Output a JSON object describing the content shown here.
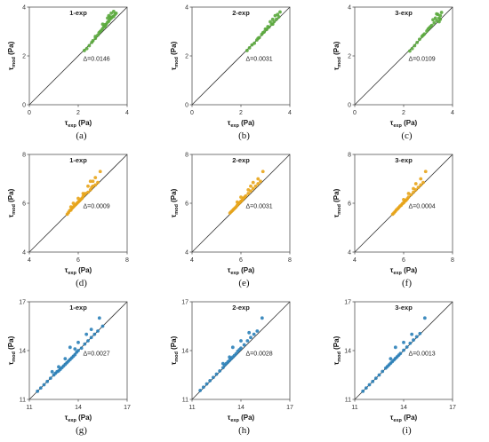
{
  "chart_data": [
    {
      "panel": "(a)",
      "title": "1-exp",
      "type": "scatter",
      "xlabel": "τexp (Pa)",
      "ylabel": "τmod (Pa)",
      "xlim": [
        0,
        4
      ],
      "ylim": [
        0,
        4
      ],
      "xticks": [
        "0",
        "2",
        "4"
      ],
      "yticks": [
        "0",
        "2",
        "4"
      ],
      "annotation": "Δ=0.0146",
      "color": "#5aa83c",
      "identity_line": true,
      "points": [
        [
          2.25,
          2.22
        ],
        [
          2.35,
          2.3
        ],
        [
          2.45,
          2.42
        ],
        [
          2.55,
          2.55
        ],
        [
          2.6,
          2.62
        ],
        [
          2.7,
          2.72
        ],
        [
          2.8,
          2.85
        ],
        [
          2.85,
          2.95
        ],
        [
          2.9,
          3.0
        ],
        [
          3.0,
          3.12
        ],
        [
          3.05,
          3.2
        ],
        [
          3.1,
          3.28
        ],
        [
          3.15,
          3.3
        ],
        [
          3.2,
          3.38
        ],
        [
          3.25,
          3.42
        ],
        [
          3.3,
          3.5
        ],
        [
          3.35,
          3.55
        ],
        [
          3.4,
          3.6
        ],
        [
          3.45,
          3.62
        ],
        [
          3.5,
          3.7
        ],
        [
          3.55,
          3.75
        ],
        [
          3.3,
          3.6
        ],
        [
          3.2,
          3.55
        ],
        [
          3.35,
          3.75
        ],
        [
          3.45,
          3.82
        ],
        [
          2.7,
          2.8
        ],
        [
          2.95,
          3.05
        ],
        [
          3.1,
          3.2
        ],
        [
          3.0,
          3.3
        ],
        [
          3.25,
          3.65
        ]
      ]
    },
    {
      "panel": "(b)",
      "title": "2-exp",
      "type": "scatter",
      "xlabel": "τexp (Pa)",
      "ylabel": "τmod (Pa)",
      "xlim": [
        0,
        4
      ],
      "ylim": [
        0,
        4
      ],
      "xticks": [
        "0",
        "2",
        "4"
      ],
      "yticks": [
        "0",
        "2",
        "4"
      ],
      "annotation": "Δ=0.0031",
      "color": "#5aa83c",
      "identity_line": true,
      "points": [
        [
          2.25,
          2.22
        ],
        [
          2.35,
          2.33
        ],
        [
          2.45,
          2.45
        ],
        [
          2.55,
          2.52
        ],
        [
          2.65,
          2.65
        ],
        [
          2.75,
          2.75
        ],
        [
          2.85,
          2.88
        ],
        [
          2.95,
          2.98
        ],
        [
          3.05,
          3.08
        ],
        [
          3.15,
          3.18
        ],
        [
          3.25,
          3.3
        ],
        [
          3.35,
          3.4
        ],
        [
          3.45,
          3.5
        ],
        [
          3.55,
          3.6
        ],
        [
          3.5,
          3.7
        ],
        [
          3.3,
          3.5
        ],
        [
          3.2,
          3.4
        ],
        [
          3.4,
          3.65
        ],
        [
          3.6,
          3.8
        ],
        [
          2.9,
          2.95
        ],
        [
          3.1,
          3.2
        ],
        [
          3.0,
          3.1
        ],
        [
          2.7,
          2.72
        ],
        [
          3.3,
          3.3
        ]
      ]
    },
    {
      "panel": "(c)",
      "title": "3-exp",
      "type": "scatter",
      "xlabel": "τexp (Pa)",
      "ylabel": "τmod (Pa)",
      "xlim": [
        0,
        4
      ],
      "ylim": [
        0,
        4
      ],
      "xticks": [
        "0",
        "2",
        "4"
      ],
      "yticks": [
        "0",
        "2",
        "4"
      ],
      "annotation": "Δ=0.0109",
      "color": "#5aa83c",
      "identity_line": true,
      "points": [
        [
          2.25,
          2.2
        ],
        [
          2.35,
          2.3
        ],
        [
          2.45,
          2.42
        ],
        [
          2.55,
          2.55
        ],
        [
          2.65,
          2.68
        ],
        [
          2.75,
          2.8
        ],
        [
          2.85,
          2.9
        ],
        [
          2.95,
          3.02
        ],
        [
          3.05,
          3.15
        ],
        [
          3.15,
          3.25
        ],
        [
          3.25,
          3.35
        ],
        [
          3.35,
          3.45
        ],
        [
          3.45,
          3.55
        ],
        [
          3.5,
          3.65
        ],
        [
          3.3,
          3.55
        ],
        [
          3.2,
          3.48
        ],
        [
          3.4,
          3.7
        ],
        [
          3.55,
          3.78
        ],
        [
          3.35,
          3.72
        ],
        [
          2.8,
          2.85
        ],
        [
          3.0,
          3.1
        ],
        [
          3.1,
          3.2
        ],
        [
          3.5,
          3.5
        ],
        [
          3.45,
          3.4
        ]
      ]
    },
    {
      "panel": "(d)",
      "title": "1-exp",
      "type": "scatter",
      "xlabel": "τexp (Pa)",
      "ylabel": "τmod (Pa)",
      "xlim": [
        4,
        8
      ],
      "ylim": [
        4,
        8
      ],
      "xticks": [
        "4",
        "6",
        "8"
      ],
      "yticks": [
        "4",
        "6",
        "8"
      ],
      "annotation": "Δ=0.0009",
      "color": "#e8a418",
      "identity_line": true,
      "points": [
        [
          5.55,
          5.55
        ],
        [
          5.6,
          5.62
        ],
        [
          5.65,
          5.7
        ],
        [
          5.7,
          5.72
        ],
        [
          5.75,
          5.8
        ],
        [
          5.8,
          5.85
        ],
        [
          5.85,
          5.9
        ],
        [
          5.9,
          5.95
        ],
        [
          5.95,
          6.0
        ],
        [
          6.0,
          6.05
        ],
        [
          6.05,
          6.1
        ],
        [
          6.1,
          6.15
        ],
        [
          6.15,
          6.2
        ],
        [
          6.2,
          6.28
        ],
        [
          6.25,
          6.35
        ],
        [
          6.3,
          6.4
        ],
        [
          6.4,
          6.45
        ],
        [
          6.5,
          6.55
        ],
        [
          6.55,
          6.65
        ],
        [
          6.6,
          6.7
        ],
        [
          6.7,
          6.75
        ],
        [
          6.8,
          6.85
        ],
        [
          6.9,
          7.3
        ],
        [
          6.7,
          7.05
        ],
        [
          6.5,
          6.9
        ],
        [
          6.4,
          6.7
        ],
        [
          6.6,
          6.9
        ],
        [
          6.2,
          6.4
        ],
        [
          6.0,
          6.2
        ],
        [
          5.8,
          6.0
        ],
        [
          5.7,
          5.85
        ]
      ]
    },
    {
      "panel": "(e)",
      "title": "2-exp",
      "type": "scatter",
      "xlabel": "τexp (Pa)",
      "ylabel": "τmod (Pa)",
      "xlim": [
        4,
        8
      ],
      "ylim": [
        4,
        8
      ],
      "xticks": [
        "4",
        "6",
        "8"
      ],
      "yticks": [
        "4",
        "6",
        "8"
      ],
      "annotation": "Δ=0.0031",
      "color": "#e8a418",
      "identity_line": true,
      "points": [
        [
          5.55,
          5.6
        ],
        [
          5.6,
          5.65
        ],
        [
          5.65,
          5.7
        ],
        [
          5.7,
          5.75
        ],
        [
          5.75,
          5.8
        ],
        [
          5.8,
          5.85
        ],
        [
          5.85,
          5.92
        ],
        [
          5.9,
          5.98
        ],
        [
          5.95,
          6.02
        ],
        [
          6.0,
          6.08
        ],
        [
          6.05,
          6.12
        ],
        [
          6.1,
          6.2
        ],
        [
          6.15,
          6.25
        ],
        [
          6.2,
          6.3
        ],
        [
          6.3,
          6.4
        ],
        [
          6.4,
          6.5
        ],
        [
          6.5,
          6.6
        ],
        [
          6.6,
          6.7
        ],
        [
          6.7,
          6.8
        ],
        [
          6.8,
          6.9
        ],
        [
          6.9,
          7.3
        ],
        [
          6.7,
          7.0
        ],
        [
          6.5,
          6.85
        ],
        [
          6.4,
          6.7
        ],
        [
          6.3,
          6.55
        ],
        [
          6.0,
          6.25
        ],
        [
          5.85,
          6.05
        ]
      ]
    },
    {
      "panel": "(f)",
      "title": "3-exp",
      "type": "scatter",
      "xlabel": "τexp (Pa)",
      "ylabel": "τmod (Pa)",
      "xlim": [
        4,
        8
      ],
      "ylim": [
        4,
        8
      ],
      "xticks": [
        "4",
        "6",
        "8"
      ],
      "yticks": [
        "4",
        "6",
        "8"
      ],
      "annotation": "Δ=0.0004",
      "color": "#e8a418",
      "identity_line": true,
      "points": [
        [
          5.55,
          5.55
        ],
        [
          5.6,
          5.6
        ],
        [
          5.65,
          5.66
        ],
        [
          5.7,
          5.72
        ],
        [
          5.75,
          5.77
        ],
        [
          5.8,
          5.82
        ],
        [
          5.85,
          5.88
        ],
        [
          5.9,
          5.92
        ],
        [
          5.95,
          5.98
        ],
        [
          6.0,
          6.02
        ],
        [
          6.05,
          6.08
        ],
        [
          6.1,
          6.12
        ],
        [
          6.15,
          6.18
        ],
        [
          6.2,
          6.25
        ],
        [
          6.3,
          6.35
        ],
        [
          6.4,
          6.45
        ],
        [
          6.5,
          6.55
        ],
        [
          6.6,
          6.65
        ],
        [
          6.7,
          6.75
        ],
        [
          6.8,
          6.85
        ],
        [
          6.9,
          7.3
        ],
        [
          6.7,
          7.0
        ],
        [
          6.5,
          6.8
        ],
        [
          6.4,
          6.6
        ],
        [
          6.2,
          6.4
        ],
        [
          6.0,
          6.15
        ]
      ]
    },
    {
      "panel": "(g)",
      "title": "1-exp",
      "type": "scatter",
      "xlabel": "τexp (Pa)",
      "ylabel": "τmod (Pa)",
      "xlim": [
        11,
        17
      ],
      "ylim": [
        11,
        17
      ],
      "xticks": [
        "11",
        "14",
        "17"
      ],
      "yticks": [
        "11",
        "14",
        "17"
      ],
      "annotation": "Δ=0.0027",
      "color": "#2a7fb8",
      "identity_line": true,
      "points": [
        [
          11.5,
          11.5
        ],
        [
          11.7,
          11.7
        ],
        [
          11.9,
          11.9
        ],
        [
          12.1,
          12.1
        ],
        [
          12.3,
          12.3
        ],
        [
          12.5,
          12.5
        ],
        [
          12.6,
          12.6
        ],
        [
          12.7,
          12.7
        ],
        [
          12.8,
          12.75
        ],
        [
          12.9,
          12.85
        ],
        [
          13.0,
          12.95
        ],
        [
          13.1,
          13.05
        ],
        [
          13.2,
          13.15
        ],
        [
          13.3,
          13.25
        ],
        [
          13.4,
          13.35
        ],
        [
          13.5,
          13.45
        ],
        [
          13.6,
          13.55
        ],
        [
          13.7,
          13.65
        ],
        [
          13.8,
          13.75
        ],
        [
          13.9,
          13.9
        ],
        [
          14.0,
          14.0
        ],
        [
          14.2,
          14.15
        ],
        [
          14.4,
          14.4
        ],
        [
          14.6,
          14.6
        ],
        [
          14.8,
          14.8
        ],
        [
          15.0,
          15.0
        ],
        [
          15.2,
          15.2
        ],
        [
          15.5,
          15.5
        ],
        [
          13.5,
          14.2
        ],
        [
          14.0,
          14.5
        ],
        [
          14.5,
          15.0
        ],
        [
          15.3,
          16.0
        ],
        [
          14.8,
          15.3
        ],
        [
          12.8,
          13.0
        ],
        [
          13.2,
          13.5
        ],
        [
          12.4,
          12.7
        ],
        [
          13.8,
          14.1
        ]
      ]
    },
    {
      "panel": "(h)",
      "title": "2-exp",
      "type": "scatter",
      "xlabel": "τexp (Pa)",
      "ylabel": "τmod (Pa)",
      "xlim": [
        11,
        17
      ],
      "ylim": [
        11,
        17
      ],
      "xticks": [
        "11",
        "14",
        "17"
      ],
      "yticks": [
        "11",
        "14",
        "17"
      ],
      "annotation": "Δ=0.0028",
      "color": "#2a7fb8",
      "identity_line": true,
      "points": [
        [
          11.5,
          11.55
        ],
        [
          11.7,
          11.75
        ],
        [
          11.9,
          11.95
        ],
        [
          12.1,
          12.15
        ],
        [
          12.3,
          12.35
        ],
        [
          12.5,
          12.55
        ],
        [
          12.7,
          12.75
        ],
        [
          12.9,
          12.95
        ],
        [
          13.0,
          13.1
        ],
        [
          13.1,
          13.2
        ],
        [
          13.2,
          13.3
        ],
        [
          13.3,
          13.4
        ],
        [
          13.4,
          13.5
        ],
        [
          13.5,
          13.6
        ],
        [
          13.6,
          13.7
        ],
        [
          13.7,
          13.8
        ],
        [
          13.8,
          13.95
        ],
        [
          13.9,
          14.05
        ],
        [
          14.0,
          14.15
        ],
        [
          14.2,
          14.35
        ],
        [
          14.4,
          14.6
        ],
        [
          14.6,
          14.8
        ],
        [
          14.8,
          15.0
        ],
        [
          15.0,
          15.2
        ],
        [
          15.3,
          16.0
        ],
        [
          13.5,
          14.2
        ],
        [
          14.0,
          14.6
        ],
        [
          14.5,
          15.1
        ],
        [
          12.9,
          13.2
        ],
        [
          13.3,
          13.6
        ]
      ]
    },
    {
      "panel": "(i)",
      "title": "3-exp",
      "type": "scatter",
      "xlabel": "τexp (Pa)",
      "ylabel": "τmod (Pa)",
      "xlim": [
        11,
        17
      ],
      "ylim": [
        11,
        17
      ],
      "xticks": [
        "11",
        "14",
        "17"
      ],
      "yticks": [
        "11",
        "14",
        "17"
      ],
      "annotation": "Δ=0.0013",
      "color": "#2a7fb8",
      "identity_line": true,
      "points": [
        [
          11.5,
          11.5
        ],
        [
          11.7,
          11.7
        ],
        [
          11.9,
          11.9
        ],
        [
          12.1,
          12.1
        ],
        [
          12.3,
          12.3
        ],
        [
          12.5,
          12.5
        ],
        [
          12.7,
          12.72
        ],
        [
          12.9,
          12.92
        ],
        [
          13.0,
          13.02
        ],
        [
          13.1,
          13.12
        ],
        [
          13.2,
          13.22
        ],
        [
          13.3,
          13.32
        ],
        [
          13.4,
          13.42
        ],
        [
          13.5,
          13.52
        ],
        [
          13.6,
          13.62
        ],
        [
          13.7,
          13.72
        ],
        [
          13.8,
          13.82
        ],
        [
          14.0,
          14.02
        ],
        [
          14.2,
          14.22
        ],
        [
          14.4,
          14.45
        ],
        [
          14.6,
          14.65
        ],
        [
          14.8,
          14.85
        ],
        [
          15.0,
          15.05
        ],
        [
          15.3,
          16.0
        ],
        [
          13.5,
          14.2
        ],
        [
          14.0,
          14.5
        ],
        [
          14.5,
          15.0
        ],
        [
          13.2,
          13.5
        ]
      ]
    }
  ]
}
